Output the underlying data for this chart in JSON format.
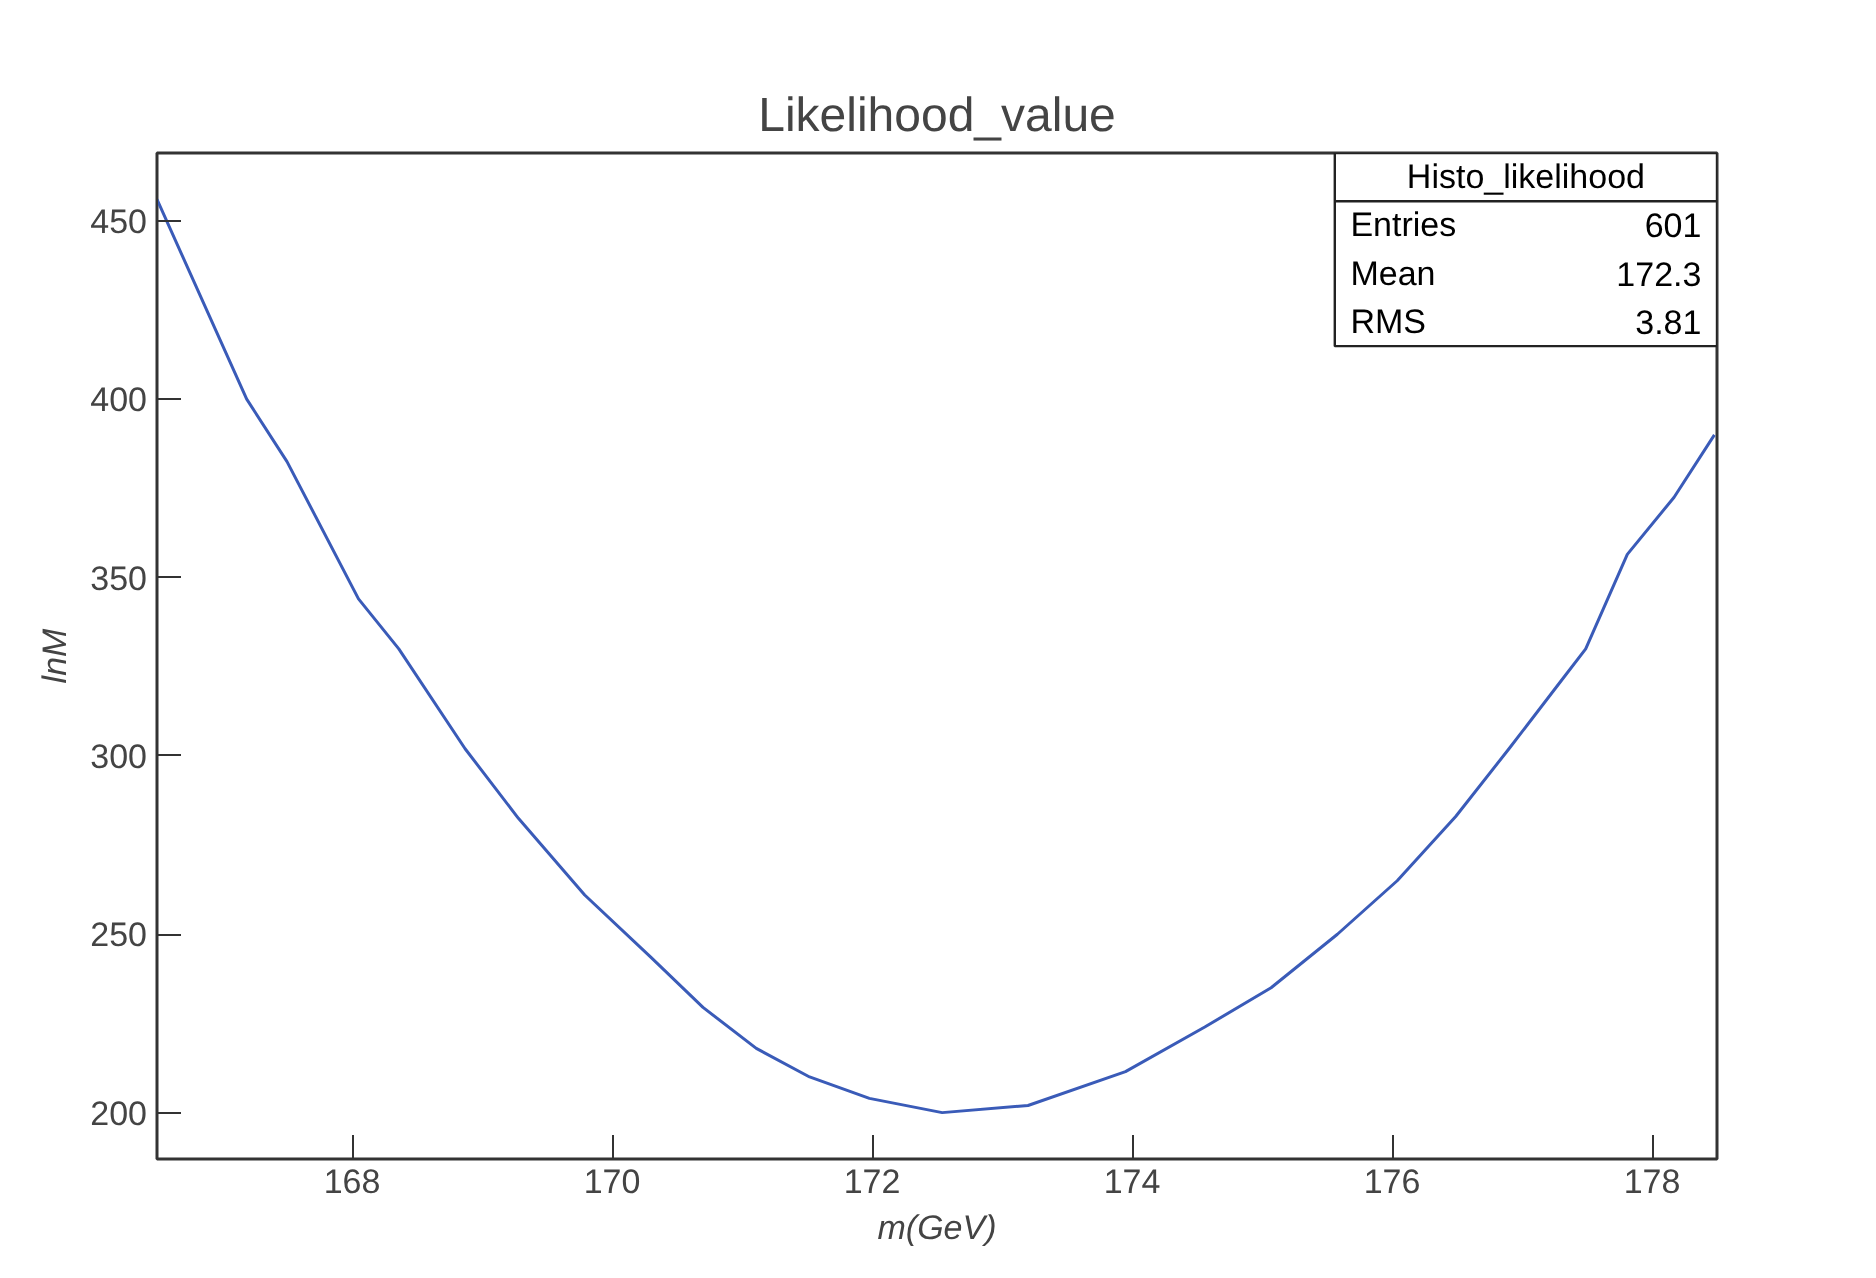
{
  "chart_data": {
    "type": "line",
    "title": "Likelihood_value",
    "xlabel": "m(GeV)",
    "ylabel": "lnM",
    "x": [
      166.5,
      167.19,
      167.5,
      168.05,
      168.36,
      168.87,
      169.28,
      169.79,
      170.3,
      170.7,
      171.11,
      171.52,
      171.98,
      172.54,
      173.2,
      173.95,
      174.56,
      175.07,
      175.58,
      176.04,
      176.49,
      176.9,
      177.3,
      177.49,
      177.81,
      178.17,
      178.48
    ],
    "series": [
      {
        "color": "#3a5bb8",
        "values": [
          456,
          400,
          382.5,
          344,
          330,
          302,
          282.5,
          261,
          243.5,
          229.5,
          218,
          210,
          204,
          200,
          202,
          211.5,
          224,
          235,
          250,
          265,
          283,
          302,
          321,
          330,
          356.5,
          372.5,
          390
        ]
      }
    ],
    "xlim": [
      166.5,
      178.5
    ],
    "ylim": [
      187,
      469
    ],
    "xticks": [
      168,
      170,
      172,
      174,
      176,
      178
    ],
    "yticks": [
      200,
      250,
      300,
      350,
      400,
      450
    ],
    "grid": false,
    "marker": "none",
    "line_style": "solid",
    "annotations": [
      "Histo_likelihood",
      "Entries",
      "601",
      "Mean",
      "172.3",
      "RMS",
      "3.81"
    ]
  }
}
